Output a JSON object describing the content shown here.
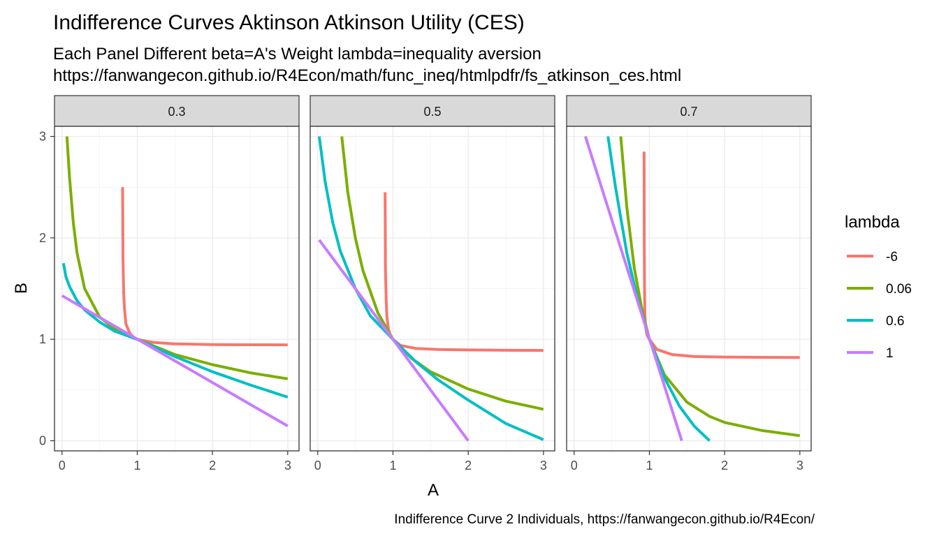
{
  "chart_data": {
    "type": "line",
    "title": "Indifference Curves Aktinson Atkinson Utility (CES)",
    "subtitle_lines": [
      "Each Panel Different beta=A's Weight lambda=inequality aversion",
      "https://fanwangecon.github.io/R4Econ/math/func_ineq/htmlpdfr/fs_atkinson_ces.html"
    ],
    "caption": "Indifference Curve 2 Individuals, https://fanwangecon.github.io/R4Econ/",
    "xlabel": "A",
    "ylabel": "B",
    "xlim": [
      -0.1,
      3.15
    ],
    "ylim": [
      -0.1,
      3.1
    ],
    "xticks": [
      0,
      1,
      2,
      3
    ],
    "yticks": [
      0,
      1,
      2,
      3
    ],
    "grid": true,
    "legend": {
      "title": "lambda",
      "position": "right",
      "entries": [
        "-6",
        "0.06",
        "0.6",
        "1"
      ]
    },
    "series_colors": {
      "-6": "#F8766D",
      "0.06": "#7CAE00",
      "0.6": "#00BFC4",
      "1": "#C77CFF"
    },
    "panels": [
      {
        "beta": "0.3",
        "series": [
          {
            "name": "-6",
            "x": [
              0.805,
              0.81,
              0.82,
              0.83,
              0.85,
              0.9,
              0.95,
              1.0,
              1.2,
              1.5,
              2.0,
              2.5,
              3.0
            ],
            "y": [
              2.5,
              1.8,
              1.45,
              1.3,
              1.15,
              1.06,
              1.02,
              1.0,
              0.97,
              0.955,
              0.948,
              0.946,
              0.945
            ]
          },
          {
            "name": "0.06",
            "x": [
              0.065,
              0.1,
              0.15,
              0.2,
              0.3,
              0.5,
              0.7,
              1.0,
              1.5,
              2.0,
              2.5,
              3.0
            ],
            "y": [
              3.0,
              2.6,
              2.15,
              1.85,
              1.5,
              1.22,
              1.1,
              1.0,
              0.85,
              0.75,
              0.67,
              0.61
            ]
          },
          {
            "name": "0.6",
            "x": [
              0.02,
              0.05,
              0.1,
              0.2,
              0.3,
              0.5,
              0.7,
              1.0,
              1.5,
              2.0,
              2.5,
              3.0
            ],
            "y": [
              1.75,
              1.62,
              1.52,
              1.38,
              1.29,
              1.17,
              1.08,
              1.0,
              0.83,
              0.68,
              0.55,
              0.43
            ]
          },
          {
            "name": "1",
            "x": [
              0.0,
              3.0
            ],
            "y": [
              1.43,
              0.145
            ]
          }
        ]
      },
      {
        "beta": "0.5",
        "series": [
          {
            "name": "-6",
            "x": [
              0.895,
              0.9,
              0.91,
              0.92,
              0.94,
              0.97,
              1.0,
              1.1,
              1.3,
              1.6,
              2.0,
              2.5,
              3.0
            ],
            "y": [
              2.45,
              1.7,
              1.38,
              1.22,
              1.1,
              1.03,
              1.0,
              0.94,
              0.91,
              0.9,
              0.895,
              0.892,
              0.89
            ]
          },
          {
            "name": "0.06",
            "x": [
              0.32,
              0.4,
              0.5,
              0.6,
              0.8,
              1.0,
              1.25,
              1.5,
              2.0,
              2.5,
              3.0
            ],
            "y": [
              3.0,
              2.45,
              2.0,
              1.68,
              1.26,
              1.0,
              0.81,
              0.68,
              0.51,
              0.39,
              0.31
            ]
          },
          {
            "name": "0.6",
            "x": [
              0.02,
              0.1,
              0.2,
              0.3,
              0.5,
              0.7,
              1.0,
              1.3,
              1.6,
              2.0,
              2.5,
              3.0
            ],
            "y": [
              3.0,
              2.55,
              2.15,
              1.87,
              1.5,
              1.23,
              1.0,
              0.78,
              0.6,
              0.4,
              0.17,
              0.01
            ]
          },
          {
            "name": "1",
            "x": [
              0.02,
              2.0
            ],
            "y": [
              1.98,
              0.0
            ]
          }
        ]
      },
      {
        "beta": "0.7",
        "series": [
          {
            "name": "-6",
            "x": [
              0.93,
              0.932,
              0.935,
              0.94,
              0.95,
              0.97,
              1.0,
              1.1,
              1.3,
              1.6,
              2.0,
              2.5,
              3.0
            ],
            "y": [
              2.85,
              2.0,
              1.5,
              1.25,
              1.12,
              1.04,
              1.0,
              0.9,
              0.85,
              0.83,
              0.825,
              0.822,
              0.82
            ]
          },
          {
            "name": "0.06",
            "x": [
              0.62,
              0.7,
              0.8,
              0.9,
              1.0,
              1.2,
              1.5,
              1.8,
              2.0,
              2.5,
              3.0
            ],
            "y": [
              3.0,
              2.3,
              1.7,
              1.3,
              1.0,
              0.65,
              0.38,
              0.24,
              0.18,
              0.1,
              0.05
            ]
          },
          {
            "name": "0.6",
            "x": [
              0.45,
              0.55,
              0.7,
              0.85,
              1.0,
              1.2,
              1.4,
              1.6,
              1.8
            ],
            "y": [
              3.0,
              2.5,
              1.85,
              1.38,
              1.0,
              0.62,
              0.34,
              0.14,
              0.0
            ]
          },
          {
            "name": "1",
            "x": [
              0.15,
              1.43
            ],
            "y": [
              3.0,
              0.0
            ]
          }
        ]
      }
    ]
  }
}
